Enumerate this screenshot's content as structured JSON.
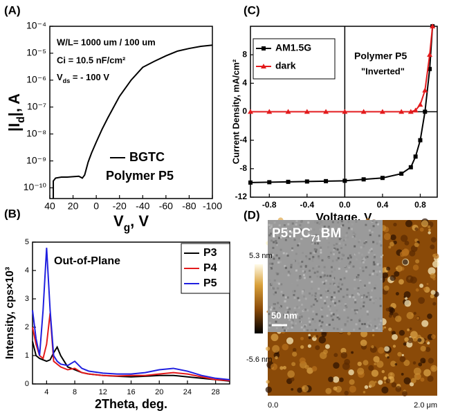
{
  "chart_data": [
    {
      "type": "line",
      "panel_label": "(A)",
      "xlabel": [
        "V",
        "g",
        ", V"
      ],
      "ylabel": [
        "|I",
        "d",
        "|, A"
      ],
      "xlim": [
        40,
        -100
      ],
      "xticks": [
        40,
        20,
        0,
        -20,
        -40,
        -60,
        -80,
        -100
      ],
      "ylim": [
        4e-11,
        0.0001
      ],
      "yscale": "log",
      "yticks": [
        {
          "value": 1e-10,
          "label": "10⁻¹⁰"
        },
        {
          "value": 1e-09,
          "label": "10⁻⁹"
        },
        {
          "value": 1e-08,
          "label": "10⁻⁸"
        },
        {
          "value": 1e-07,
          "label": "10⁻⁷"
        },
        {
          "value": 1e-06,
          "label": "10⁻⁶"
        },
        {
          "value": 1e-05,
          "label": "10⁻⁵"
        },
        {
          "value": 0.0001,
          "label": "10⁻⁴"
        }
      ],
      "x": [
        37,
        37,
        35,
        30,
        25,
        20,
        15,
        12,
        10,
        7,
        4,
        0,
        -5,
        -10,
        -15,
        -20,
        -25,
        -30,
        -40,
        -50,
        -60,
        -70,
        -80,
        -90,
        -100
      ],
      "series": [
        {
          "name": "BGTC",
          "color": "#000000",
          "values": [
            4e-11,
            1.8e-10,
            2.3e-10,
            2.5e-10,
            2.5e-10,
            2.6e-10,
            2.7e-10,
            2.3e-10,
            3e-10,
            9e-10,
            2e-09,
            5e-09,
            1.5e-08,
            4e-08,
            1e-07,
            2.5e-07,
            5e-07,
            1e-06,
            3e-06,
            5e-06,
            8e-06,
            1.2e-05,
            1.5e-05,
            1.8e-05,
            2e-05
          ]
        }
      ],
      "annotations": [
        "W/L= 1000 um / 100 um",
        "Ci = 10.5 nF/cm²",
        [
          "V",
          "ds",
          " = - 100 V"
        ],
        "Polymer P5"
      ],
      "legend": "lower right",
      "legend_box": false
    },
    {
      "type": "line",
      "panel_label": "(B)",
      "xlabel": "2Theta, deg.",
      "ylabel": "Intensity, cps×10³",
      "xlim": [
        2,
        30
      ],
      "xticks": [
        4,
        8,
        12,
        16,
        20,
        24,
        28
      ],
      "ylim": [
        0,
        5
      ],
      "yticks": [
        0,
        1,
        2,
        3,
        4,
        5
      ],
      "x": [
        2,
        2.5,
        3,
        3.5,
        4,
        4.5,
        5,
        5.5,
        6,
        7,
        8,
        9,
        10,
        12,
        14,
        16,
        18,
        20,
        22,
        24,
        26,
        28,
        30
      ],
      "series": [
        {
          "name": "P3",
          "color": "#000000",
          "values": [
            1.5,
            1.0,
            0.9,
            0.85,
            0.8,
            0.85,
            1.1,
            1.3,
            1.0,
            0.6,
            0.5,
            0.4,
            0.35,
            0.3,
            0.27,
            0.25,
            0.27,
            0.3,
            0.3,
            0.25,
            0.2,
            0.15,
            0.1
          ]
        },
        {
          "name": "P4",
          "color": "#e31a1c",
          "values": [
            2.0,
            1.4,
            1.0,
            0.9,
            1.4,
            2.5,
            0.8,
            0.7,
            0.6,
            0.5,
            0.55,
            0.4,
            0.35,
            0.3,
            0.28,
            0.3,
            0.3,
            0.35,
            0.4,
            0.35,
            0.25,
            0.15,
            0.12
          ]
        },
        {
          "name": "P5",
          "color": "#1f1fe0",
          "values": [
            2.6,
            1.6,
            1.0,
            2.6,
            4.8,
            2.6,
            1.0,
            0.8,
            0.7,
            0.65,
            0.8,
            0.55,
            0.45,
            0.38,
            0.35,
            0.35,
            0.4,
            0.5,
            0.55,
            0.45,
            0.3,
            0.2,
            0.15
          ]
        }
      ],
      "annotations": [
        "Out-of-Plane"
      ],
      "legend": "upper right",
      "legend_box": true
    },
    {
      "type": "line",
      "panel_label": "(C)",
      "xlabel": "Voltage, V",
      "ylabel": "Current Density, mA/cm²",
      "xlim": [
        -1,
        0.98
      ],
      "xticks": [
        -0.8,
        -0.4,
        {
          "value": 0,
          "label": "0.0"
        },
        0.4,
        0.8
      ],
      "ylim": [
        -12,
        12
      ],
      "yticks": [
        -12,
        -8,
        -4,
        0,
        4,
        8
      ],
      "zero_lines": true,
      "x": [
        -1,
        -0.8,
        -0.6,
        -0.4,
        -0.2,
        0,
        0.2,
        0.4,
        0.6,
        0.7,
        0.75,
        0.8,
        0.85,
        0.9,
        0.93
      ],
      "series": [
        {
          "name": "AM1.5G",
          "color": "#000000",
          "marker": "square",
          "values": [
            -9.95,
            -9.9,
            -9.85,
            -9.8,
            -9.75,
            -9.7,
            -9.5,
            -9.3,
            -8.7,
            -7.8,
            -6.3,
            -4,
            0,
            6,
            12
          ]
        },
        {
          "name": "dark",
          "color": "#e31a1c",
          "marker": "triangle",
          "values": [
            0,
            0,
            0,
            0,
            0,
            0,
            0,
            0,
            0,
            0,
            0.2,
            1,
            3,
            8,
            12
          ]
        }
      ],
      "annotations": [
        "Polymer P5",
        "\"Inverted\""
      ],
      "legend": "upper left",
      "legend_box": true
    },
    {
      "type": "image",
      "panel_label": "(D)",
      "inset_title": [
        "P5:PC",
        "71",
        "BM"
      ],
      "scale_bar": "50 nm",
      "colorbar_labels": [
        "5.3 nm",
        "-5.6 nm"
      ],
      "xtick_labels": [
        "0.0",
        "2.0 μm"
      ]
    }
  ]
}
